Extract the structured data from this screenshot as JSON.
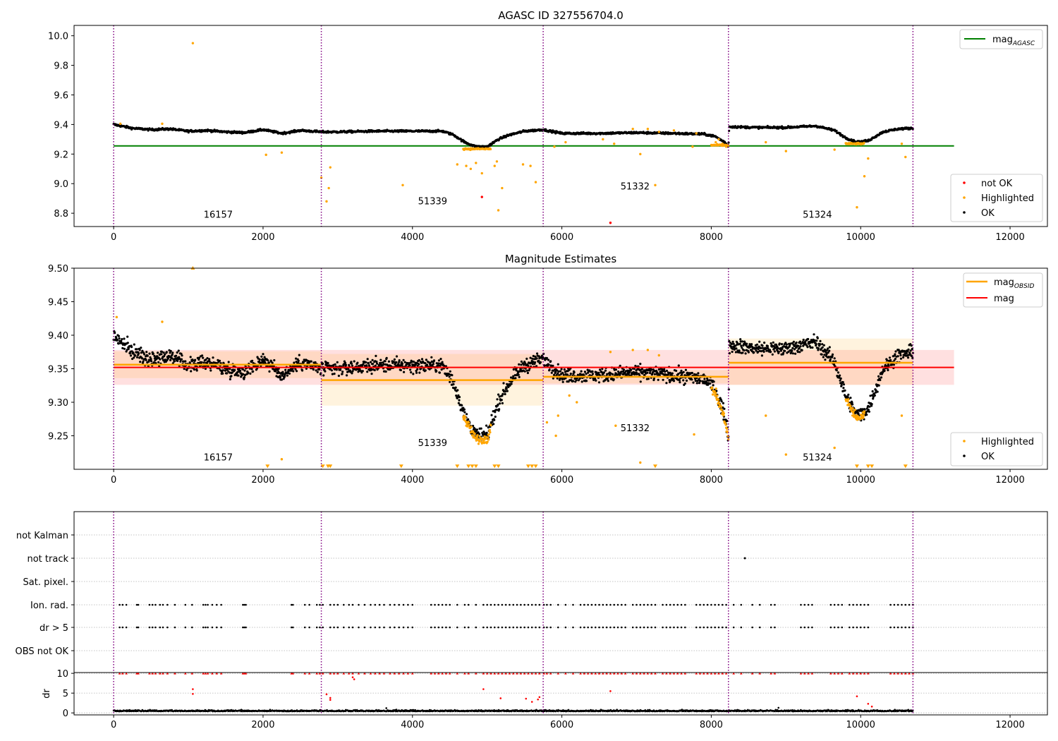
{
  "chart_data": [
    {
      "type": "scatter",
      "title": "AGASC ID 327556704.0",
      "xlabel": "",
      "ylabel": "",
      "xlim": [
        -530,
        12500
      ],
      "ylim": [
        8.71,
        10.07
      ],
      "xticks": [
        0,
        2000,
        4000,
        6000,
        8000,
        10000,
        12000
      ],
      "yticks": [
        8.8,
        9.0,
        9.2,
        9.4,
        9.6,
        9.8,
        10.0
      ],
      "ytick_labels": [
        "8.8",
        "9.0",
        "9.2",
        "9.4",
        "9.6",
        "9.8",
        "10.0"
      ],
      "grid": false,
      "obsid_boundaries": [
        0,
        2780,
        5750,
        8230,
        10700
      ],
      "obsid_labels": [
        {
          "text": "16157",
          "x": 1400,
          "y": 8.77
        },
        {
          "text": "51339",
          "x": 4270,
          "y": 8.86
        },
        {
          "text": "51332",
          "x": 6980,
          "y": 8.96
        },
        {
          "text": "51324",
          "x": 9420,
          "y": 8.77
        }
      ],
      "mag_agasc": 9.255,
      "mag_agasc_xrange": [
        0,
        11250
      ],
      "ok_profile": [
        [
          0,
          9.4
        ],
        [
          250,
          9.375
        ],
        [
          500,
          9.365
        ],
        [
          750,
          9.37
        ],
        [
          1000,
          9.355
        ],
        [
          1250,
          9.36
        ],
        [
          1500,
          9.35
        ],
        [
          1750,
          9.345
        ],
        [
          2000,
          9.365
        ],
        [
          2250,
          9.34
        ],
        [
          2500,
          9.36
        ],
        [
          2780,
          9.35
        ],
        [
          3000,
          9.35
        ],
        [
          3500,
          9.355
        ],
        [
          4000,
          9.355
        ],
        [
          4400,
          9.355
        ],
        [
          4550,
          9.33
        ],
        [
          4700,
          9.28
        ],
        [
          4850,
          9.25
        ],
        [
          5000,
          9.25
        ],
        [
          5150,
          9.3
        ],
        [
          5300,
          9.33
        ],
        [
          5500,
          9.355
        ],
        [
          5750,
          9.365
        ],
        [
          6000,
          9.34
        ],
        [
          6500,
          9.34
        ],
        [
          7000,
          9.345
        ],
        [
          7500,
          9.34
        ],
        [
          7900,
          9.335
        ],
        [
          8050,
          9.32
        ],
        [
          8180,
          9.28
        ],
        [
          8230,
          9.25
        ],
        [
          8240,
          9.385
        ],
        [
          8600,
          9.38
        ],
        [
          9000,
          9.38
        ],
        [
          9400,
          9.39
        ],
        [
          9650,
          9.36
        ],
        [
          9800,
          9.31
        ],
        [
          9950,
          9.28
        ],
        [
          10100,
          9.29
        ],
        [
          10300,
          9.35
        ],
        [
          10500,
          9.37
        ],
        [
          10700,
          9.375
        ]
      ],
      "ok_noise": 0.012,
      "highlighted_points": [
        [
          90,
          9.405
        ],
        [
          650,
          9.405
        ],
        [
          1060,
          9.95
        ],
        [
          2040,
          9.195
        ],
        [
          2250,
          9.21
        ],
        [
          2780,
          9.04
        ],
        [
          2850,
          8.88
        ],
        [
          2880,
          8.97
        ],
        [
          2900,
          9.11
        ],
        [
          3870,
          8.99
        ],
        [
          4600,
          9.13
        ],
        [
          4720,
          9.12
        ],
        [
          4780,
          9.1
        ],
        [
          4850,
          9.14
        ],
        [
          4930,
          9.07
        ],
        [
          5100,
          9.12
        ],
        [
          5130,
          9.15
        ],
        [
          5150,
          8.82
        ],
        [
          5200,
          8.97
        ],
        [
          5480,
          9.13
        ],
        [
          5580,
          9.12
        ],
        [
          5650,
          9.01
        ],
        [
          5900,
          9.25
        ],
        [
          6050,
          9.28
        ],
        [
          6550,
          9.3
        ],
        [
          6700,
          9.27
        ],
        [
          6950,
          9.37
        ],
        [
          7050,
          9.2
        ],
        [
          7150,
          9.37
        ],
        [
          7250,
          8.99
        ],
        [
          7300,
          9.35
        ],
        [
          7500,
          9.36
        ],
        [
          7750,
          9.25
        ],
        [
          7800,
          9.34
        ],
        [
          8060,
          9.28
        ],
        [
          8100,
          9.3
        ],
        [
          8150,
          9.27
        ],
        [
          8200,
          9.25
        ],
        [
          8730,
          9.28
        ],
        [
          9000,
          9.22
        ],
        [
          9650,
          9.23
        ],
        [
          9950,
          8.84
        ],
        [
          10050,
          9.05
        ],
        [
          10100,
          9.17
        ],
        [
          10550,
          9.27
        ],
        [
          10600,
          9.18
        ]
      ],
      "highlighted_dips": [
        {
          "x": [
            4680,
            5050
          ],
          "y": 9.235
        },
        {
          "x": [
            8000,
            8230
          ],
          "y": 9.26
        },
        {
          "x": [
            9800,
            10050
          ],
          "y": 9.27
        }
      ],
      "not_ok_points": [
        [
          4930,
          8.91
        ],
        [
          6650,
          8.735
        ]
      ],
      "legend_top": {
        "position": "top-right",
        "entries": [
          {
            "label": "mag",
            "sub": "AGASC",
            "color": "#008000"
          }
        ]
      },
      "legend_bottom": {
        "position": "bottom-right",
        "entries": [
          {
            "label": "not OK",
            "color": "#ff0000"
          },
          {
            "label": "Highlighted",
            "color": "#ffa500"
          },
          {
            "label": "OK",
            "color": "#000000"
          }
        ]
      }
    },
    {
      "type": "scatter",
      "title": "Magnitude Estimates",
      "xlabel": "",
      "ylabel": "",
      "xlim": [
        -530,
        12500
      ],
      "ylim": [
        9.2,
        9.5
      ],
      "xticks": [
        0,
        2000,
        4000,
        6000,
        8000,
        10000,
        12000
      ],
      "yticks": [
        9.25,
        9.3,
        9.35,
        9.4,
        9.45,
        9.5
      ],
      "ytick_labels": [
        "9.25",
        "9.30",
        "9.35",
        "9.40",
        "9.45",
        "9.50"
      ],
      "grid": false,
      "obsid_boundaries": [
        0,
        2780,
        5750,
        8230,
        10700
      ],
      "obsid_labels": [
        {
          "text": "16157",
          "x": 1400,
          "y": 9.213
        },
        {
          "text": "51339",
          "x": 4270,
          "y": 9.235
        },
        {
          "text": "51332",
          "x": 6980,
          "y": 9.257
        },
        {
          "text": "51324",
          "x": 9420,
          "y": 9.213
        }
      ],
      "mag": 9.352,
      "mag_band": [
        9.326,
        9.378
      ],
      "mag_xrange": [
        0,
        11250
      ],
      "mag_obsid": [
        {
          "x": [
            0,
            2780
          ],
          "mag": 9.356,
          "band": [
            9.336,
            9.376
          ]
        },
        {
          "x": [
            2780,
            5750
          ],
          "mag": 9.333,
          "band": [
            9.295,
            9.372
          ]
        },
        {
          "x": [
            5750,
            8230
          ],
          "mag": 9.338,
          "band": [
            9.328,
            9.348
          ]
        },
        {
          "x": [
            8230,
            10700
          ],
          "mag": 9.359,
          "band": [
            9.326,
            9.395
          ]
        }
      ],
      "ok_noise": 0.018,
      "highlighted_points": [
        [
          1060,
          9.5
        ],
        [
          40,
          9.427
        ],
        [
          650,
          9.42
        ],
        [
          2060,
          9.205
        ],
        [
          2250,
          9.215
        ],
        [
          2800,
          9.205
        ],
        [
          2870,
          9.205
        ],
        [
          2900,
          9.205
        ],
        [
          3850,
          9.205
        ],
        [
          4600,
          9.205
        ],
        [
          4750,
          9.205
        ],
        [
          4800,
          9.205
        ],
        [
          4850,
          9.205
        ],
        [
          5100,
          9.205
        ],
        [
          5150,
          9.205
        ],
        [
          5550,
          9.205
        ],
        [
          5600,
          9.205
        ],
        [
          5650,
          9.205
        ],
        [
          5800,
          9.27
        ],
        [
          5920,
          9.25
        ],
        [
          5950,
          9.28
        ],
        [
          6100,
          9.31
        ],
        [
          6200,
          9.3
        ],
        [
          6650,
          9.375
        ],
        [
          6720,
          9.265
        ],
        [
          6950,
          9.378
        ],
        [
          7050,
          9.21
        ],
        [
          7150,
          9.378
        ],
        [
          7250,
          9.205
        ],
        [
          7300,
          9.37
        ],
        [
          7770,
          9.252
        ],
        [
          8730,
          9.28
        ],
        [
          9000,
          9.222
        ],
        [
          9650,
          9.232
        ],
        [
          9950,
          9.205
        ],
        [
          10100,
          9.205
        ],
        [
          10150,
          9.205
        ],
        [
          10550,
          9.28
        ],
        [
          10600,
          9.205
        ]
      ],
      "legend_top": {
        "position": "top-right",
        "entries": [
          {
            "label": "mag",
            "sub": "OBSID",
            "color": "#ffa500"
          },
          {
            "label": "mag",
            "color": "#ff0000"
          }
        ]
      },
      "legend_bottom": {
        "position": "bottom-right",
        "entries": [
          {
            "label": "Highlighted",
            "color": "#ffa500"
          },
          {
            "label": "OK",
            "color": "#000000"
          }
        ]
      }
    },
    {
      "type": "scatter",
      "title": "",
      "xlabel": "",
      "ylabel": "",
      "xlim": [
        -530,
        12500
      ],
      "flag_categories": [
        "not Kalman",
        "not track",
        "Sat. pixel.",
        "Ion. rad.",
        "dr > 5",
        "OBS not OK"
      ],
      "flag_events_ion_rad": [
        80,
        120,
        170,
        310,
        330,
        480,
        520,
        560,
        620,
        660,
        720,
        820,
        960,
        1050,
        1200,
        1230,
        1260,
        1320,
        1380,
        1440,
        1730,
        1750,
        1770,
        2380,
        2400,
        2560,
        2620,
        2720,
        2760,
        2800,
        2900,
        2950,
        3000,
        3080,
        3150,
        3200,
        3280,
        3360,
        3440,
        3500,
        3560,
        3620,
        3700,
        3760,
        3820,
        3880,
        3940,
        4000,
        4250,
        4300,
        4350,
        4400,
        4450,
        4500,
        4600,
        4700,
        4750,
        4850,
        4950,
        5000,
        5050,
        5100,
        5150,
        5200,
        5250,
        5300,
        5350,
        5400,
        5450,
        5500,
        5550,
        5600,
        5650,
        5700,
        5760,
        5800,
        5850,
        5950,
        6050,
        6150,
        6250,
        6300,
        6350,
        6400,
        6450,
        6500,
        6550,
        6600,
        6650,
        6700,
        6750,
        6800,
        6850,
        6950,
        7000,
        7050,
        7100,
        7150,
        7200,
        7250,
        7350,
        7400,
        7450,
        7500,
        7550,
        7600,
        7650,
        7800,
        7850,
        7900,
        7950,
        8000,
        8050,
        8100,
        8150,
        8200,
        8300,
        8400,
        8550,
        8650,
        8800,
        8850,
        9200,
        9250,
        9300,
        9350,
        9600,
        9650,
        9700,
        9750,
        9850,
        9900,
        9950,
        10000,
        10050,
        10100,
        10400,
        10450,
        10500,
        10550,
        10600,
        10650,
        10700
      ],
      "flag_events_not_track": [
        8450
      ],
      "dr_axis": {
        "ylabel": "dr",
        "yticks": [
          0,
          5,
          10
        ],
        "ylim": [
          -0.5,
          10.2
        ]
      },
      "dr_baseline": 0.4,
      "dr_outliers": [
        [
          1060,
          6.0
        ],
        [
          1060,
          4.8
        ],
        [
          2850,
          4.7
        ],
        [
          2900,
          3.8
        ],
        [
          2900,
          3.3
        ],
        [
          3220,
          8.5
        ],
        [
          3200,
          9.0
        ],
        [
          4950,
          6.0
        ],
        [
          5180,
          3.7
        ],
        [
          5520,
          3.6
        ],
        [
          5600,
          2.8
        ],
        [
          5680,
          3.4
        ],
        [
          5700,
          4.0
        ],
        [
          6650,
          5.5
        ],
        [
          9950,
          4.2
        ],
        [
          10100,
          2.3
        ],
        [
          10150,
          1.6
        ],
        [
          3650,
          1.2
        ],
        [
          8900,
          1.3
        ]
      ]
    }
  ]
}
